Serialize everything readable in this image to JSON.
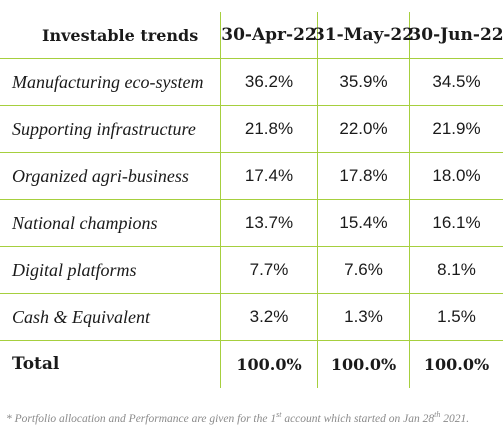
{
  "table": {
    "header": {
      "label": "Investable trends",
      "dates": [
        "30-Apr-22",
        "31-May-22",
        "30-Jun-22"
      ]
    },
    "rows": [
      {
        "label": "Manufacturing eco-system",
        "values": [
          "36.2%",
          "35.9%",
          "34.5%"
        ]
      },
      {
        "label": "Supporting infrastructure",
        "values": [
          "21.8%",
          "22.0%",
          "21.9%"
        ]
      },
      {
        "label": "Organized agri-business",
        "values": [
          "17.4%",
          "17.8%",
          "18.0%"
        ]
      },
      {
        "label": "National champions",
        "values": [
          "13.7%",
          "15.4%",
          "16.1%"
        ]
      },
      {
        "label": "Digital platforms",
        "values": [
          "7.7%",
          "7.6%",
          "8.1%"
        ]
      },
      {
        "label": "Cash & Equivalent",
        "values": [
          "3.2%",
          "1.3%",
          "1.5%"
        ]
      }
    ],
    "total": {
      "label": "Total",
      "values": [
        "100.0%",
        "100.0%",
        "100.0%"
      ]
    }
  },
  "footnote": {
    "prefix": "* Portfolio allocation and Performance are given for the 1",
    "sup1": "st",
    "middle": " account which started on Jan 28",
    "sup2": "th",
    "suffix": " 2021."
  },
  "colors": {
    "grid_line": "#a6cf3e",
    "text": "#1a1a1a",
    "footnote": "#8a8a8a"
  }
}
